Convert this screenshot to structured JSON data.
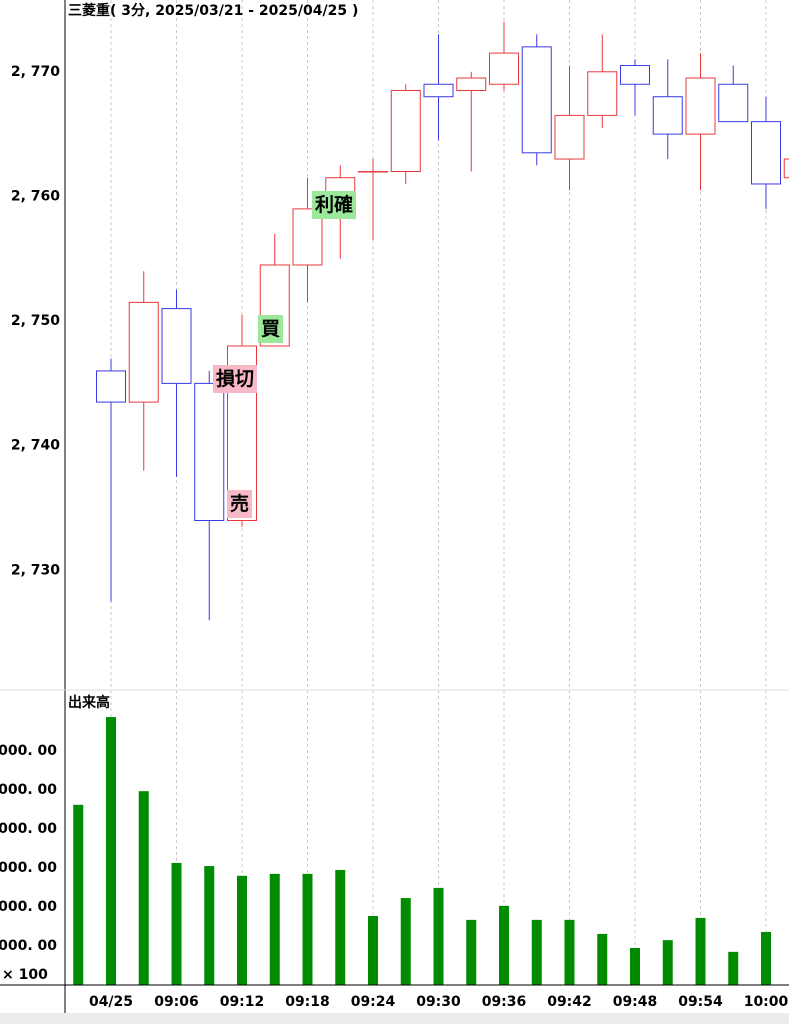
{
  "chart_data": [
    {
      "type": "candlestick",
      "title": "三菱重( 3分, 2025/03/21 - 2025/04/25 )",
      "categories": [
        null,
        "04/25",
        null,
        "09:06",
        null,
        "09:12",
        null,
        "09:18",
        null,
        "09:24",
        null,
        "09:30",
        null,
        "09:36",
        null,
        "09:42",
        null,
        "09:48",
        null,
        "09:54",
        null,
        "10:00",
        null
      ],
      "open": [
        null,
        2746,
        2743.5,
        2751,
        2745,
        2734,
        2748,
        2754.5,
        2759,
        2762,
        2762,
        2769,
        2768.5,
        2769,
        2772,
        2763,
        2766.5,
        2770.5,
        2768,
        2765,
        2769,
        2766,
        2761.5
      ],
      "high": [
        null,
        2747,
        2754,
        2752.5,
        2746,
        2750.5,
        2757,
        2761.5,
        2762.5,
        2763,
        2769,
        2773,
        2770,
        2774,
        2773,
        2770.5,
        2773,
        2771,
        2771,
        2771.5,
        2770.5,
        2768,
        2763
      ],
      "low": [
        null,
        2727.5,
        2738,
        2737.5,
        2726,
        2733.5,
        2748,
        2751.5,
        2755,
        2756.5,
        2761,
        2764.5,
        2762,
        2768.5,
        2762.5,
        2760.5,
        2765.5,
        2766.5,
        2763,
        2760.5,
        2766,
        2759,
        2761.5
      ],
      "close": [
        null,
        2743.5,
        2751.5,
        2745,
        2734,
        2748,
        2754.5,
        2759,
        2761.5,
        2762,
        2768.5,
        2768,
        2769.5,
        2771.5,
        2763.5,
        2766.5,
        2770,
        2769,
        2765,
        2769.5,
        2766,
        2761,
        2763
      ],
      "up_color": "#e8383d",
      "down_color": "#3a3ae8",
      "ylim": [
        2720,
        2776
      ],
      "yticks": [
        {
          "value": 2730,
          "label": "2, 730"
        },
        {
          "value": 2740,
          "label": "2, 740"
        },
        {
          "value": 2750,
          "label": "2, 750"
        },
        {
          "value": 2760,
          "label": "2, 760"
        },
        {
          "value": 2770,
          "label": "2, 770"
        }
      ],
      "grid": true,
      "annotations": [
        {
          "text": "損切",
          "color": "#f7b8c8"
        },
        {
          "text": "売",
          "color": "#f7b8c8"
        },
        {
          "text": "買",
          "color": "#9be89b"
        },
        {
          "text": "利確",
          "color": "#9be89b"
        }
      ]
    },
    {
      "type": "bar",
      "title": "出来高",
      "unit_label": "× 100",
      "values": [
        4620,
        6870,
        4970,
        3130,
        3050,
        2800,
        2850,
        2850,
        2950,
        1770,
        2230,
        2490,
        1670,
        2030,
        1670,
        1670,
        1310,
        950,
        1150,
        1720,
        850,
        1360,
        null
      ],
      "color": "#008c00",
      "ylim": [
        0,
        7500
      ],
      "yticks": [
        {
          "value": 1000,
          "label": "000. 00"
        },
        {
          "value": 2000,
          "label": "000. 00"
        },
        {
          "value": 3000,
          "label": "000. 00"
        },
        {
          "value": 4000,
          "label": "000. 00"
        },
        {
          "value": 5000,
          "label": "000. 00"
        },
        {
          "value": 6000,
          "label": "000. 00"
        }
      ],
      "grid": true
    }
  ]
}
